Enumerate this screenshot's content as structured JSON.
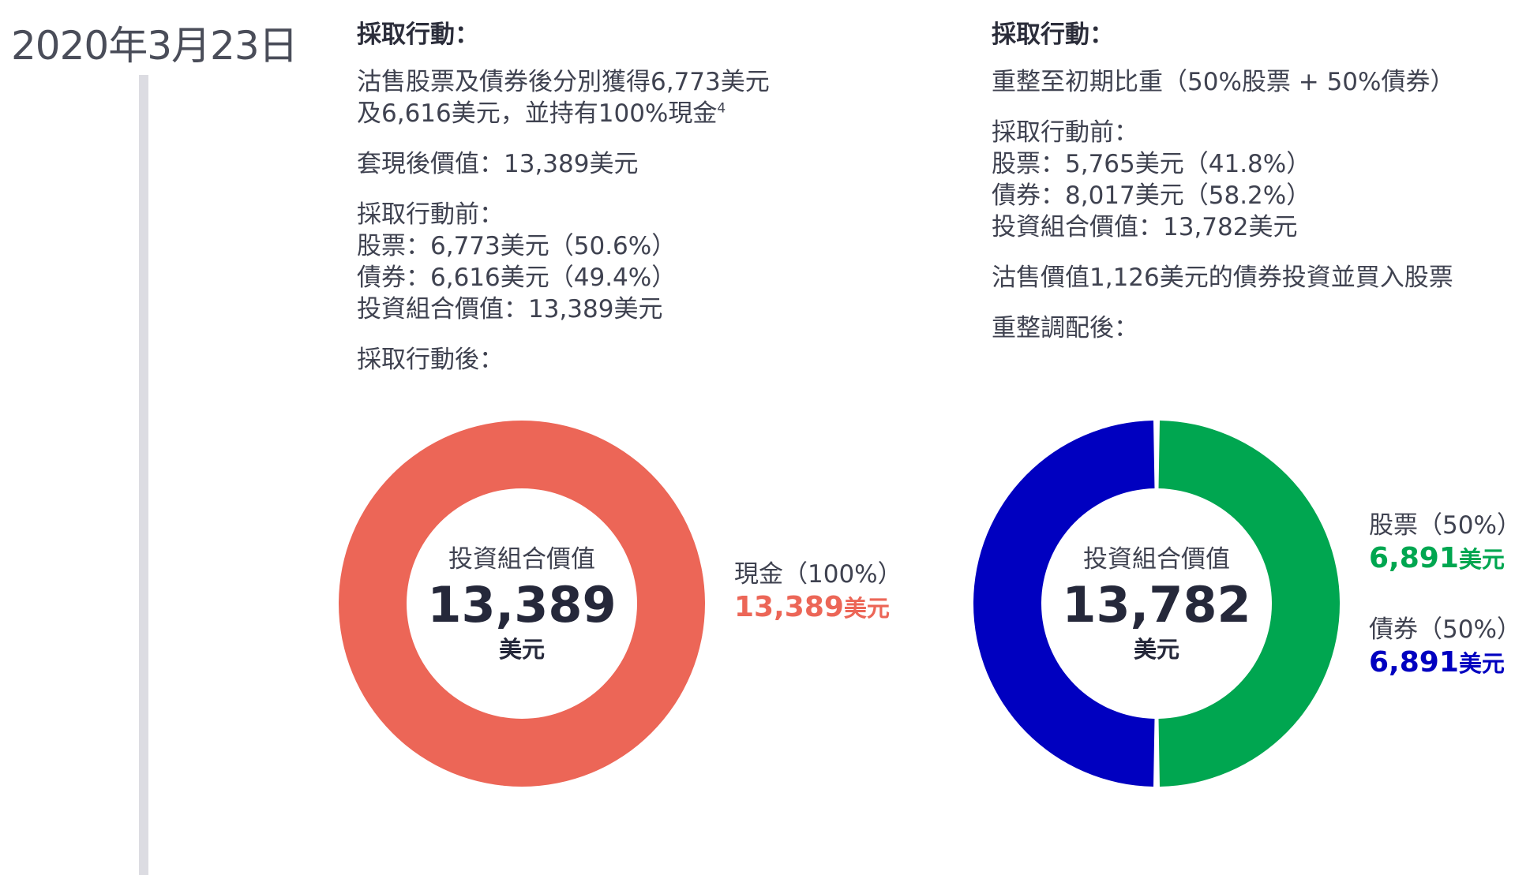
{
  "date": "2020年3月23日",
  "left": {
    "header": "採取行動：",
    "action_line1": "沽售股票及債券後分別獲得6,773美元",
    "action_line2": "及6,616美元，並持有100%現金",
    "footnote": "4",
    "cash_value": "套現後價值：13,389美元",
    "before_title": "採取行動前：",
    "before_stock": "股票：6,773美元（50.6%）",
    "before_bond": "債券：6,616美元（49.4%）",
    "before_total": "投資組合價值：13,389美元",
    "after_title": "採取行動後："
  },
  "right": {
    "header": "採取行動：",
    "action": "重整至初期比重（50%股票 + 50%債券）",
    "before_title": "採取行動前：",
    "before_stock": "股票：5,765美元（41.8%）",
    "before_bond": "債券：8,017美元（58.2%）",
    "before_total": "投資組合價值：13,782美元",
    "trade": "沽售價值1,126美元的債券投資並買入股票",
    "after_title": "重整調配後："
  },
  "chart_data": [
    {
      "type": "pie",
      "variant": "donut",
      "center_label": "投資組合價值",
      "center_value": "13,389",
      "center_unit": "美元",
      "series": [
        {
          "name": "現金（100%）",
          "value": 13389,
          "value_text": "13,389",
          "unit": "美元",
          "color": "#ec6657"
        }
      ]
    },
    {
      "type": "pie",
      "variant": "donut",
      "center_label": "投資組合價值",
      "center_value": "13,782",
      "center_unit": "美元",
      "series": [
        {
          "name": "股票（50%）",
          "value": 6891,
          "value_text": "6,891",
          "unit": "美元",
          "color": "#00a650"
        },
        {
          "name": "債券（50%）",
          "value": 6891,
          "value_text": "6,891",
          "unit": "美元",
          "color": "#0000c0"
        }
      ]
    }
  ]
}
